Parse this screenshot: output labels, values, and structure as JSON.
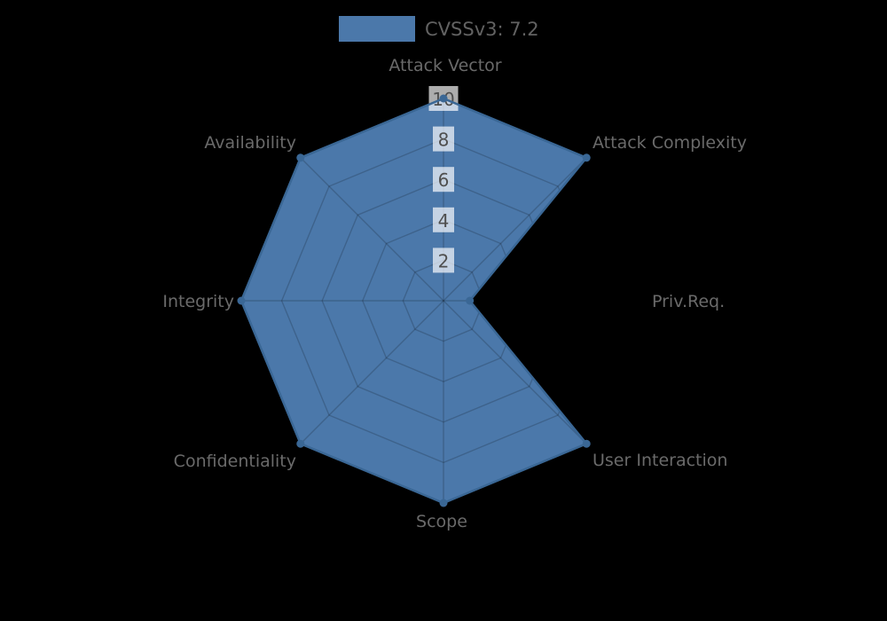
{
  "background_color": "#000000",
  "chart_data": {
    "type": "radar",
    "title": "",
    "legend": {
      "label": "CVSSv3: 7.2",
      "position": "top-center"
    },
    "categories": [
      "Attack Vector",
      "Attack Complexity",
      "Priv.Req.",
      "User Interaction",
      "Scope",
      "Confidentiality",
      "Integrity",
      "Availability"
    ],
    "series": [
      {
        "name": "CVSSv3: 7.2",
        "values": [
          10,
          10,
          1.3,
          10,
          10,
          10,
          10,
          10
        ]
      }
    ],
    "radial_axis": {
      "min": 0,
      "max": 10,
      "ticks": [
        2,
        4,
        6,
        8,
        10
      ]
    },
    "grid": true,
    "axis_direction": "clockwise-from-top",
    "colors": {
      "fill": "#4b78aa",
      "line": "#3a6795",
      "grid_line": "rgba(0,0,0,0.18)",
      "tick_text": "#4f4f4f",
      "tick_backdrop": "rgba(255,255,255,0.68)",
      "axis_label_text": "#6a6a6a",
      "legend_text": "#626262",
      "background": "#000000"
    }
  }
}
